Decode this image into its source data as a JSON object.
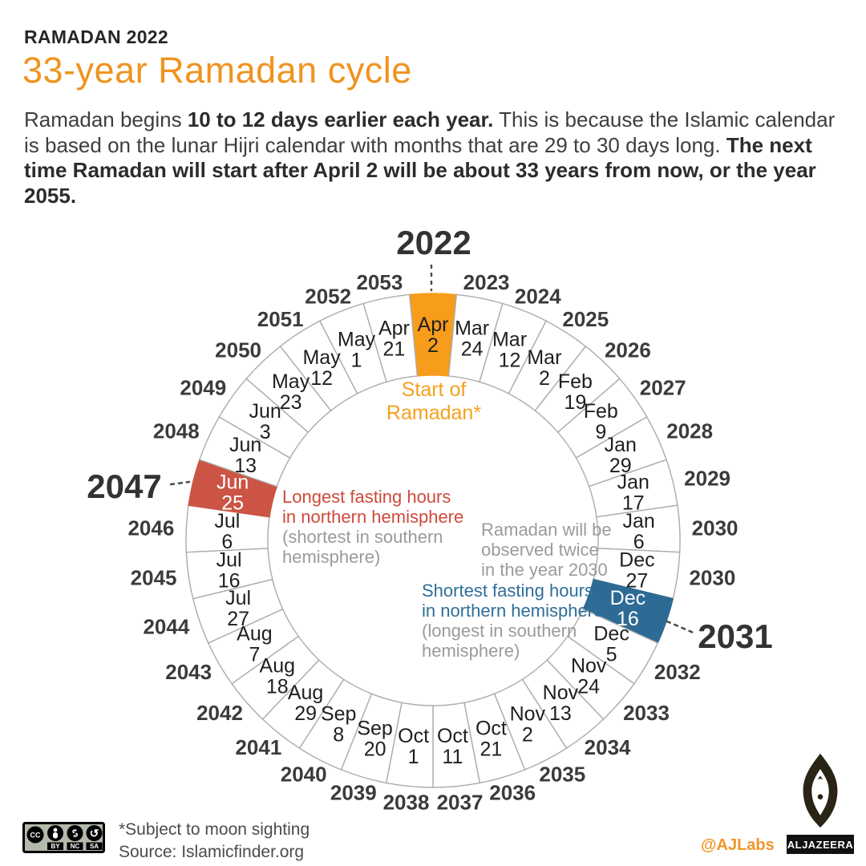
{
  "header": {
    "kicker": "RAMADAN 2022",
    "title": "33-year Ramadan cycle",
    "intro_parts": [
      {
        "text": "Ramadan begins ",
        "bold": false
      },
      {
        "text": "10 to 12 days earlier each year.",
        "bold": true
      },
      {
        "text": " This is because the Islamic calendar is based on the lunar Hijri calendar with months that are 29 to 30 days long. ",
        "bold": false
      },
      {
        "text": "The next time Ramadan will start after April 2 will be about 33 years from now, or the year 2055.",
        "bold": true
      }
    ]
  },
  "chart_data": {
    "type": "radial-calendar",
    "description": "Start date of Ramadan for each year of the 33-year cycle, arranged clockwise on a ring starting at top with 2022",
    "highlights": {
      "orange": {
        "color": "#F89C1B",
        "text": "#222222"
      },
      "red": {
        "color": "#CB5444",
        "text": "#ffffff"
      },
      "blue": {
        "color": "#2E6B94",
        "text": "#ffffff"
      }
    },
    "segments": [
      {
        "year": "2022",
        "month": "Apr",
        "day": "2",
        "highlight": "orange"
      },
      {
        "year": "2023",
        "month": "Mar",
        "day": "24"
      },
      {
        "year": "2024",
        "month": "Mar",
        "day": "12"
      },
      {
        "year": "2025",
        "month": "Mar",
        "day": "2"
      },
      {
        "year": "2026",
        "month": "Feb",
        "day": "19"
      },
      {
        "year": "2027",
        "month": "Feb",
        "day": "9"
      },
      {
        "year": "2028",
        "month": "Jan",
        "day": "29"
      },
      {
        "year": "2029",
        "month": "Jan",
        "day": "17"
      },
      {
        "year": "2030",
        "month": "Jan",
        "day": "6"
      },
      {
        "year": "2030",
        "month": "Dec",
        "day": "27"
      },
      {
        "year": "2031",
        "month": "Dec",
        "day": "16",
        "highlight": "blue"
      },
      {
        "year": "2032",
        "month": "Dec",
        "day": "5"
      },
      {
        "year": "2033",
        "month": "Nov",
        "day": "24"
      },
      {
        "year": "2034",
        "month": "Nov",
        "day": "13"
      },
      {
        "year": "2035",
        "month": "Nov",
        "day": "2"
      },
      {
        "year": "2036",
        "month": "Oct",
        "day": "21"
      },
      {
        "year": "2037",
        "month": "Oct",
        "day": "11"
      },
      {
        "year": "2038",
        "month": "Oct",
        "day": "1"
      },
      {
        "year": "2039",
        "month": "Sep",
        "day": "20"
      },
      {
        "year": "2040",
        "month": "Sep",
        "day": "8"
      },
      {
        "year": "2041",
        "month": "Aug",
        "day": "29"
      },
      {
        "year": "2042",
        "month": "Aug",
        "day": "18"
      },
      {
        "year": "2043",
        "month": "Aug",
        "day": "7"
      },
      {
        "year": "2044",
        "month": "Jul",
        "day": "27"
      },
      {
        "year": "2045",
        "month": "Jul",
        "day": "16"
      },
      {
        "year": "2046",
        "month": "Jul",
        "day": "6"
      },
      {
        "year": "2047",
        "month": "Jun",
        "day": "25",
        "highlight": "red"
      },
      {
        "year": "2048",
        "month": "Jun",
        "day": "13"
      },
      {
        "year": "2049",
        "month": "Jun",
        "day": "3"
      },
      {
        "year": "2050",
        "month": "May",
        "day": "23"
      },
      {
        "year": "2051",
        "month": "May",
        "day": "12"
      },
      {
        "year": "2052",
        "month": "May",
        "day": "1"
      },
      {
        "year": "2053",
        "month": "Apr",
        "day": "21"
      }
    ]
  },
  "annotations": {
    "start_of_ramadan": {
      "lines": [
        "Start of",
        "Ramadan*"
      ]
    },
    "longest": {
      "main": [
        "Longest fasting hours",
        "in northern hemisphere"
      ],
      "sub": [
        "(shortest in southern",
        "hemisphere)"
      ]
    },
    "twice": {
      "lines": [
        "Ramadan will be",
        "observed twice",
        "in the year 2030"
      ]
    },
    "shortest": {
      "main": [
        "Shortest fasting hours",
        "in northern hemisphere"
      ],
      "sub": [
        "(longest in southern",
        "hemisphere)"
      ]
    }
  },
  "footer": {
    "license_cc": "CC",
    "license_labels": [
      "BY",
      "NC",
      "SA"
    ],
    "note": "*Subject to moon sighting",
    "source": "Source: Islamicfinder.org",
    "credit": "@AJLabs",
    "logo_wordmark": "ALJAZEERA"
  }
}
